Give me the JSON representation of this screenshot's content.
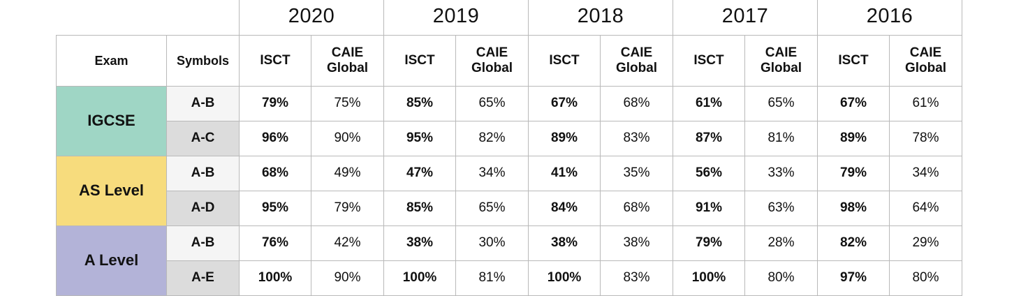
{
  "table": {
    "years": [
      "2020",
      "2019",
      "2018",
      "2017",
      "2016"
    ],
    "headers": {
      "exam": "Exam",
      "symbols": "Symbols",
      "isct": "ISCT",
      "caie_line1": "CAIE",
      "caie_line2": "Global"
    },
    "groups": [
      {
        "exam": "IGCSE",
        "color": "#9fd6c5",
        "rows": [
          {
            "symbol": "A-B",
            "values": [
              "79%",
              "75%",
              "85%",
              "65%",
              "67%",
              "68%",
              "61%",
              "65%",
              "67%",
              "61%"
            ]
          },
          {
            "symbol": "A-C",
            "values": [
              "96%",
              "90%",
              "95%",
              "82%",
              "89%",
              "83%",
              "87%",
              "81%",
              "89%",
              "78%"
            ]
          }
        ]
      },
      {
        "exam": "AS Level",
        "color": "#f7dc7d",
        "rows": [
          {
            "symbol": "A-B",
            "values": [
              "68%",
              "49%",
              "47%",
              "34%",
              "41%",
              "35%",
              "56%",
              "33%",
              "79%",
              "34%"
            ]
          },
          {
            "symbol": "A-D",
            "values": [
              "95%",
              "79%",
              "85%",
              "65%",
              "84%",
              "68%",
              "91%",
              "63%",
              "98%",
              "64%"
            ]
          }
        ]
      },
      {
        "exam": "A Level",
        "color": "#b3b3d8",
        "rows": [
          {
            "symbol": "A-B",
            "values": [
              "76%",
              "42%",
              "38%",
              "30%",
              "38%",
              "38%",
              "79%",
              "28%",
              "82%",
              "29%"
            ]
          },
          {
            "symbol": "A-E",
            "values": [
              "100%",
              "90%",
              "100%",
              "81%",
              "100%",
              "83%",
              "100%",
              "80%",
              "97%",
              "80%"
            ]
          }
        ]
      }
    ]
  }
}
